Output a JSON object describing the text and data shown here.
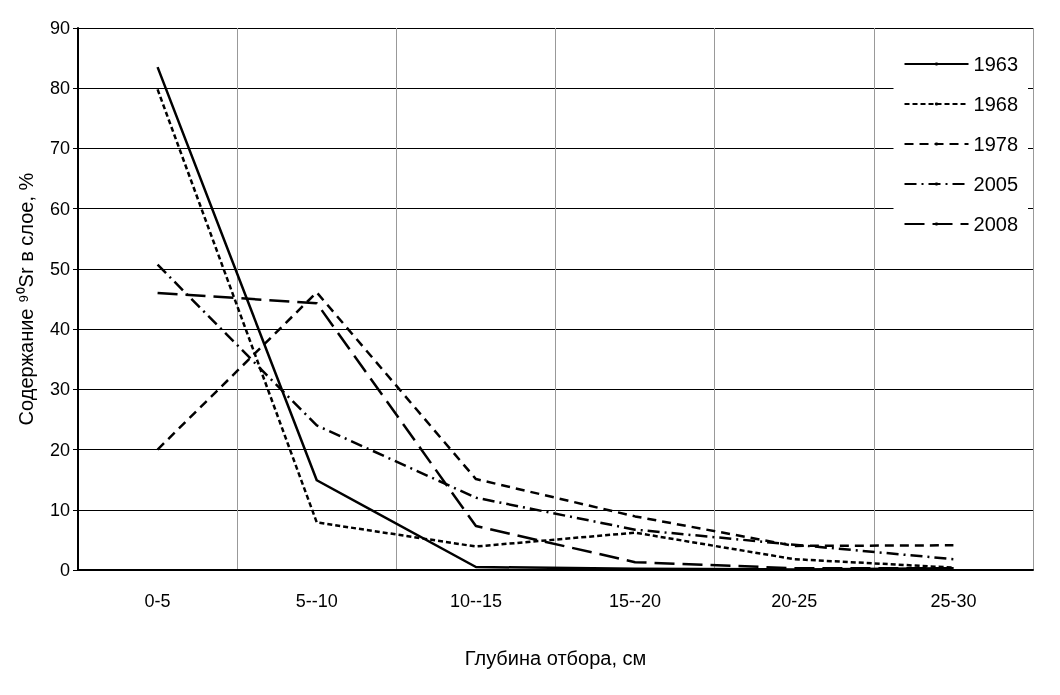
{
  "chart_data": {
    "type": "line",
    "xlabel": "Глубина отбора, см",
    "ylabel": "Содержание ⁹⁰Sr в слое, %",
    "categories": [
      "0-5",
      "5--10",
      "10--15",
      "15--20",
      "20-25",
      "25-30"
    ],
    "ylim": [
      0,
      90
    ],
    "yticks": [
      0,
      10,
      20,
      30,
      40,
      50,
      60,
      70,
      80,
      90
    ],
    "grid": true,
    "legend": "top right",
    "series": [
      {
        "name": "1963",
        "color": "#000000",
        "line_style": "solid",
        "values": [
          83.5,
          14.9,
          0.5,
          0.2,
          0.1,
          0.3
        ]
      },
      {
        "name": "1968",
        "color": "#000000",
        "line_style": "dotted",
        "values": [
          79.8,
          7.9,
          3.9,
          6.2,
          1.8,
          0.4
        ]
      },
      {
        "name": "1978",
        "color": "#000000",
        "line_style": "dashed",
        "values": [
          20,
          46.1,
          15.1,
          8.9,
          4,
          4.1
        ]
      },
      {
        "name": "2005",
        "color": "#000000",
        "line_style": "dashdot",
        "values": [
          50.7,
          24,
          12,
          6.7,
          4.2,
          1.8
        ]
      },
      {
        "name": "2008",
        "color": "#000000",
        "line_style": "longdash",
        "values": [
          46,
          44.3,
          7.3,
          1.3,
          0.3,
          0.3
        ]
      }
    ]
  }
}
